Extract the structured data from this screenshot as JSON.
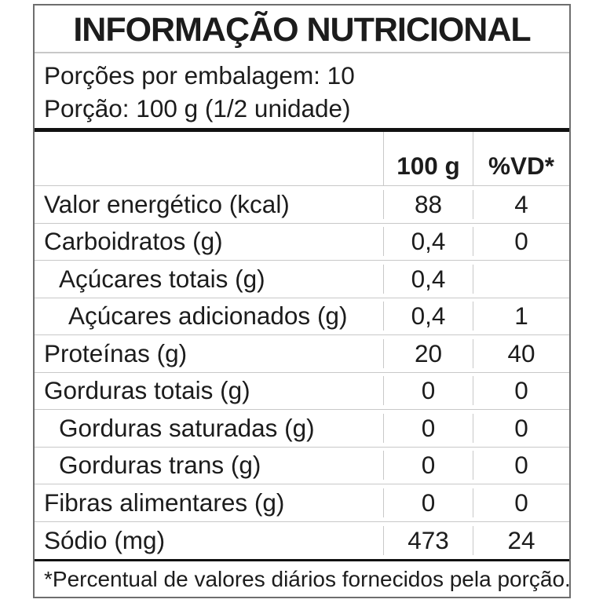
{
  "label": {
    "title": "INFORMAÇÃO NUTRICIONAL",
    "servings_line": "Porções por embalagem: 10",
    "portion_line": "Porção: 100 g (1/2 unidade)",
    "columns": {
      "nutrient": "",
      "amount": "100 g",
      "dv": "%VD*"
    },
    "rows": [
      {
        "name": "Valor energético (kcal)",
        "indent": 0,
        "amount": "88",
        "dv": "4"
      },
      {
        "name": "Carboidratos (g)",
        "indent": 0,
        "amount": "0,4",
        "dv": "0"
      },
      {
        "name": "Açúcares totais (g)",
        "indent": 1,
        "amount": "0,4",
        "dv": ""
      },
      {
        "name": "Açúcares adicionados (g)",
        "indent": 2,
        "amount": "0,4",
        "dv": "1"
      },
      {
        "name": "Proteínas (g)",
        "indent": 0,
        "amount": "20",
        "dv": "40"
      },
      {
        "name": "Gorduras totais (g)",
        "indent": 0,
        "amount": "0",
        "dv": "0"
      },
      {
        "name": "Gorduras saturadas (g)",
        "indent": 1,
        "amount": "0",
        "dv": "0"
      },
      {
        "name": "Gorduras trans (g)",
        "indent": 1,
        "amount": "0",
        "dv": "0"
      },
      {
        "name": "Fibras alimentares (g)",
        "indent": 0,
        "amount": "0",
        "dv": "0"
      },
      {
        "name": "Sódio (mg)",
        "indent": 0,
        "amount": "473",
        "dv": "24"
      }
    ],
    "footnote": "*Percentual de valores diários fornecidos pela porção.",
    "colors": {
      "text": "#1c1c1c",
      "grid_line": "#c8c8c8",
      "heavy_rule": "#111111",
      "outer_border": "#6e6e6e",
      "background": "#ffffff"
    }
  }
}
